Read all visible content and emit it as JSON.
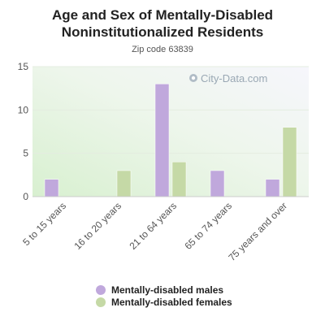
{
  "title_line1": "Age and Sex of Mentally-Disabled",
  "title_line2": "Noninstitutionalized Residents",
  "subtitle": "Zip code 63839",
  "watermark": "City-Data.com",
  "chart_data": {
    "type": "bar",
    "title": "Age and Sex of Mentally-Disabled Noninstitutionalized Residents",
    "subtitle": "Zip code 63839",
    "categories": [
      "5 to 15 years",
      "16 to 20 years",
      "21 to 64 years",
      "65 to 74 years",
      "75 years and over"
    ],
    "series": [
      {
        "name": "Mentally-disabled males",
        "color": "#c0a8dc",
        "values": [
          2,
          0,
          13,
          3,
          2
        ]
      },
      {
        "name": "Mentally-disabled females",
        "color": "#c5d9a6",
        "values": [
          0,
          3,
          4,
          0,
          8
        ]
      }
    ],
    "ylim": [
      0,
      15
    ],
    "yticks": [
      0,
      5,
      10,
      15
    ],
    "grid": true,
    "legend": "bottom"
  }
}
